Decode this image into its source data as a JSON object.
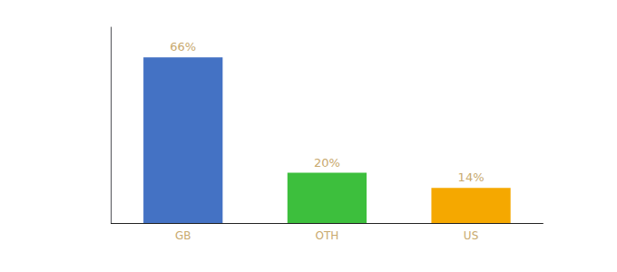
{
  "chart_data": {
    "type": "bar",
    "categories": [
      "GB",
      "OTH",
      "US"
    ],
    "values": [
      66,
      20,
      14
    ],
    "value_labels": [
      "66%",
      "20%",
      "14%"
    ],
    "colors": [
      "#4472c4",
      "#3dbf3d",
      "#f5a800"
    ],
    "ylim": [
      0,
      78
    ],
    "data_labels": true,
    "tick_labels": "x",
    "grid": false
  }
}
